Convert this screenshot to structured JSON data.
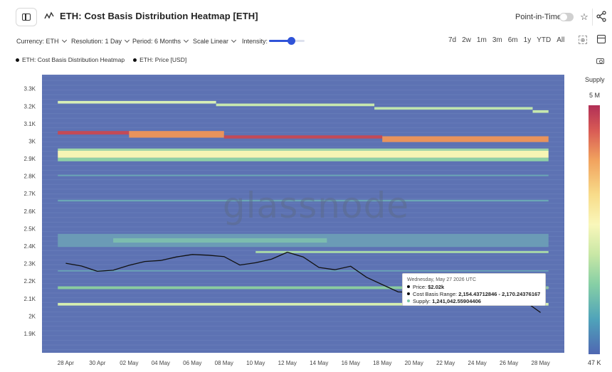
{
  "header": {
    "title": "ETH: Cost Basis Distribution Heatmap [ETH]",
    "point_in_time_label": "Point-in-Time",
    "point_in_time_enabled": false
  },
  "controls": {
    "currency": "Currency: ETH",
    "resolution": "Resolution: 1 Day",
    "period": "Period: 6 Months",
    "scale": "Scale Linear",
    "intensity_label": "Intensity:",
    "intensity_value": 0.62,
    "ranges": [
      "7d",
      "2w",
      "1m",
      "3m",
      "6m",
      "1y",
      "YTD",
      "All"
    ]
  },
  "legend": [
    {
      "label": "ETH: Cost Basis Distribution Heatmap",
      "color": "#111111"
    },
    {
      "label": "ETH: Price [USD]",
      "color": "#111111"
    }
  ],
  "colorbar": {
    "title": "Supply",
    "max_label": "5 M",
    "min_label": "47 K"
  },
  "watermark": "glassnode",
  "tooltip": {
    "date": "Wednesday, May 27 2026 UTC",
    "price_label": "Price:",
    "price_value": "$2.02k",
    "range_label": "Cost Basis Range:",
    "range_value": "2,154.43712846 - 2,170.24376167",
    "supply_label": "Supply:",
    "supply_value": "1,241,042.55904406",
    "price_dot_color": "#111111",
    "range_dot_color": "#111111",
    "supply_dot_color": "#7ec8a9"
  },
  "chart_data": {
    "type": "heatmap",
    "title": "ETH: Cost Basis Distribution Heatmap [ETH]",
    "xlabel": "",
    "ylabel": "",
    "x_ticks": [
      "28 Apr",
      "30 Apr",
      "02 May",
      "04 May",
      "06 May",
      "08 May",
      "10 May",
      "12 May",
      "14 May",
      "16 May",
      "18 May",
      "20 May",
      "22 May",
      "24 May",
      "26 May",
      "28 May"
    ],
    "y_ticks": [
      {
        "label": "1.9K",
        "value": 1900
      },
      {
        "label": "2K",
        "value": 2000
      },
      {
        "label": "2.1K",
        "value": 2100
      },
      {
        "label": "2.2K",
        "value": 2200
      },
      {
        "label": "2.3K",
        "value": 2300
      },
      {
        "label": "2.4K",
        "value": 2400
      },
      {
        "label": "2.5K",
        "value": 2500
      },
      {
        "label": "2.6K",
        "value": 2600
      },
      {
        "label": "2.7K",
        "value": 2700
      },
      {
        "label": "2.8K",
        "value": 2800
      },
      {
        "label": "2.9K",
        "value": 2900
      },
      {
        "label": "3K",
        "value": 3000
      },
      {
        "label": "3.1K",
        "value": 3100
      },
      {
        "label": "3.2K",
        "value": 3200
      },
      {
        "label": "3.3K",
        "value": 3300
      }
    ],
    "y_range": [
      1790,
      3380
    ],
    "x_range_days": [
      -1.5,
      31.5
    ],
    "background_color": "#5d72b3",
    "price_series": {
      "name": "ETH: Price [USD]",
      "color": "#111111",
      "points": [
        [
          0,
          2302
        ],
        [
          1,
          2286
        ],
        [
          2,
          2256
        ],
        [
          3,
          2262
        ],
        [
          4,
          2290
        ],
        [
          5,
          2312
        ],
        [
          6,
          2318
        ],
        [
          7,
          2338
        ],
        [
          8,
          2352
        ],
        [
          9,
          2348
        ],
        [
          10,
          2340
        ],
        [
          11,
          2292
        ],
        [
          12,
          2305
        ],
        [
          13,
          2325
        ],
        [
          14,
          2365
        ],
        [
          15,
          2338
        ],
        [
          16,
          2278
        ],
        [
          17,
          2265
        ],
        [
          18,
          2285
        ],
        [
          19,
          2222
        ],
        [
          20,
          2180
        ],
        [
          21,
          2138
        ],
        [
          22,
          2135
        ],
        [
          23,
          2132
        ],
        [
          24,
          2128
        ],
        [
          25,
          2118
        ],
        [
          26,
          2112
        ],
        [
          27,
          2105
        ],
        [
          28,
          2098
        ],
        [
          29,
          2085
        ],
        [
          30,
          2020
        ]
      ]
    },
    "bands": [
      {
        "y0": 3215,
        "y1": 3230,
        "d0": 0,
        "d1": 10,
        "color": "#d8efb6"
      },
      {
        "y0": 3200,
        "y1": 3215,
        "d0": 10,
        "d1": 20,
        "color": "#c7e8ae"
      },
      {
        "y0": 3180,
        "y1": 3195,
        "d0": 20,
        "d1": 30,
        "color": "#bfe4ad"
      },
      {
        "y0": 3162,
        "y1": 3177,
        "d0": 30,
        "d1": 31,
        "color": "#c7e8ae"
      },
      {
        "y0": 3038,
        "y1": 3058,
        "d0": 0,
        "d1": 4.5,
        "color": "#c34a57"
      },
      {
        "y0": 3020,
        "y1": 3058,
        "d0": 4.5,
        "d1": 10.5,
        "color": "#e9935c"
      },
      {
        "y0": 3015,
        "y1": 3033,
        "d0": 10.5,
        "d1": 20.5,
        "color": "#c34a57"
      },
      {
        "y0": 2995,
        "y1": 3028,
        "d0": 20.5,
        "d1": 31,
        "color": "#e9935c"
      },
      {
        "y0": 2945,
        "y1": 2958,
        "d0": 0,
        "d1": 31,
        "color": "#9fd6a8"
      },
      {
        "y0": 2905,
        "y1": 2945,
        "d0": 0,
        "d1": 31,
        "color": "#f7f5b4"
      },
      {
        "y0": 2885,
        "y1": 2905,
        "d0": 0,
        "d1": 31,
        "color": "#8fd0a6"
      },
      {
        "y0": 2800,
        "y1": 2808,
        "d0": 0,
        "d1": 31,
        "color": "#6aa6b6"
      },
      {
        "y0": 2655,
        "y1": 2665,
        "d0": 0,
        "d1": 31,
        "color": "#6aa6b6"
      },
      {
        "y0": 2395,
        "y1": 2470,
        "d0": 0,
        "d1": 31,
        "color": "#6b9bb6"
      },
      {
        "y0": 2420,
        "y1": 2445,
        "d0": 3.5,
        "d1": 17,
        "color": "#7cbcae"
      },
      {
        "y0": 2360,
        "y1": 2372,
        "d0": 12.5,
        "d1": 31,
        "color": "#a8d8a8"
      },
      {
        "y0": 2255,
        "y1": 2262,
        "d0": 0,
        "d1": 31,
        "color": "#6aa6b6"
      },
      {
        "y0": 2154,
        "y1": 2170,
        "d0": 0,
        "d1": 31,
        "color": "#8acb9f"
      },
      {
        "y0": 2060,
        "y1": 2075,
        "d0": 0,
        "d1": 31,
        "color": "#d6efb0"
      }
    ]
  }
}
